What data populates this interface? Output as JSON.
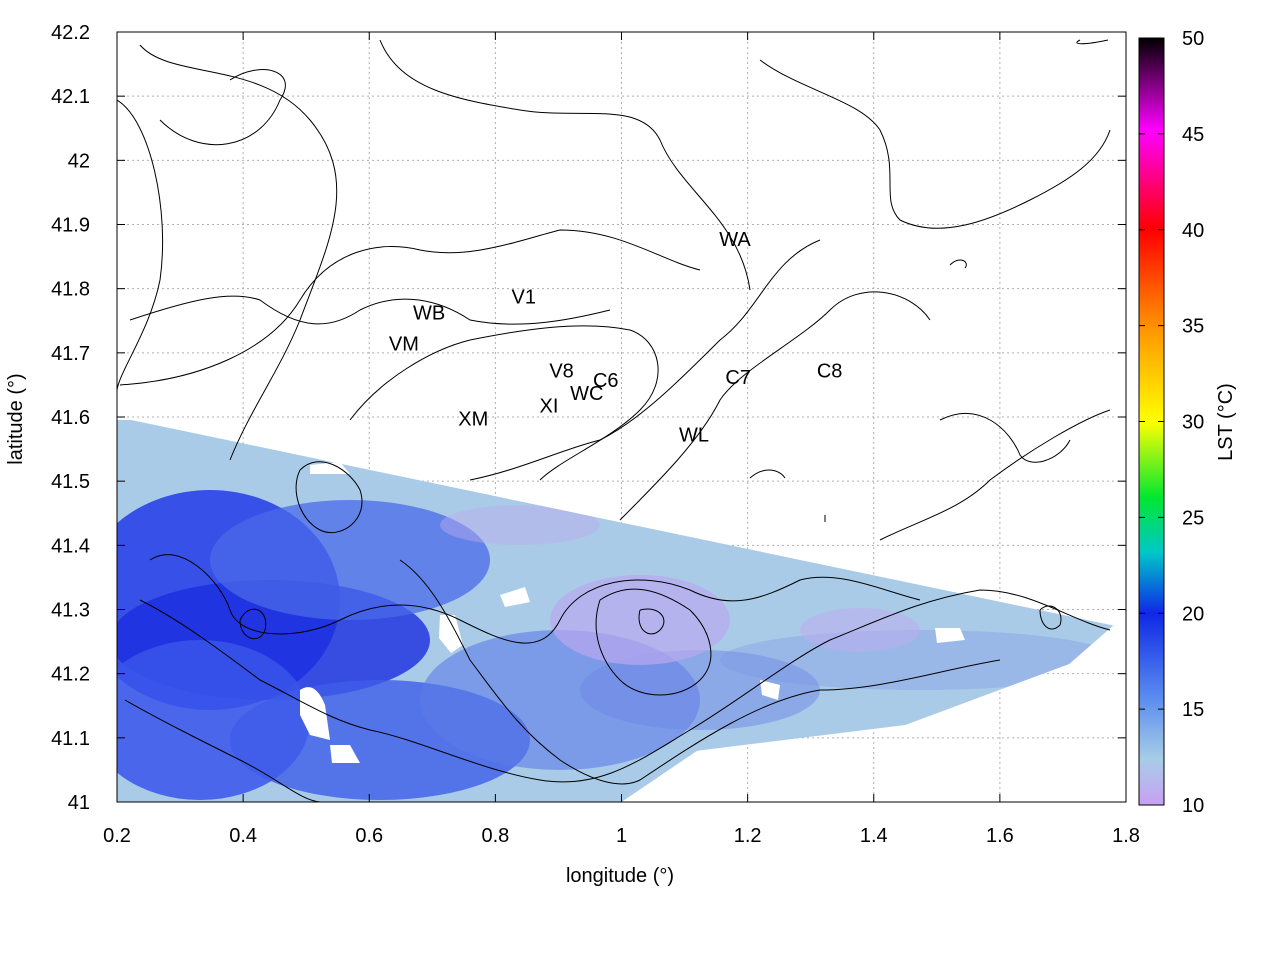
{
  "chart_data": {
    "type": "heatmap",
    "xlabel": "longitude (°)",
    "ylabel": "latitude (°)",
    "colorbar_label": "LST (°C)",
    "xlim": [
      0.2,
      1.8
    ],
    "ylim": [
      41.0,
      42.2
    ],
    "colorbar_range": [
      10,
      50
    ],
    "x_ticks": [
      "0.2",
      "0.4",
      "0.6",
      "0.8",
      "1",
      "1.2",
      "1.4",
      "1.6",
      "1.8"
    ],
    "y_ticks": [
      "41",
      "41.1",
      "41.2",
      "41.3",
      "41.4",
      "41.5",
      "41.6",
      "41.7",
      "41.8",
      "41.9",
      "42",
      "42.1",
      "42.2"
    ],
    "colorbar_ticks": [
      "10",
      "15",
      "20",
      "25",
      "30",
      "35",
      "40",
      "45",
      "50"
    ],
    "grid": true,
    "stations": [
      {
        "label": "WA",
        "lon": 1.18,
        "lat": 41.875
      },
      {
        "label": "V1",
        "lon": 0.845,
        "lat": 41.785
      },
      {
        "label": "WB",
        "lon": 0.695,
        "lat": 41.76
      },
      {
        "label": "VM",
        "lon": 0.655,
        "lat": 41.712
      },
      {
        "label": "V8",
        "lon": 0.905,
        "lat": 41.67
      },
      {
        "label": "C6",
        "lon": 0.975,
        "lat": 41.655
      },
      {
        "label": "WC",
        "lon": 0.945,
        "lat": 41.635
      },
      {
        "label": "C7",
        "lon": 1.185,
        "lat": 41.66
      },
      {
        "label": "C8",
        "lon": 1.33,
        "lat": 41.67
      },
      {
        "label": "XI",
        "lon": 0.885,
        "lat": 41.615
      },
      {
        "label": "XM",
        "lon": 0.765,
        "lat": 41.595
      },
      {
        "label": "WL",
        "lon": 1.115,
        "lat": 41.57
      }
    ],
    "swath": {
      "polygon": [
        [
          0.2,
          41.6
        ],
        [
          1.78,
          41.275
        ],
        [
          1.71,
          41.215
        ],
        [
          1.45,
          41.12
        ],
        [
          1.12,
          41.08
        ],
        [
          1.0,
          41.0
        ],
        [
          0.2,
          41.0
        ]
      ],
      "temperature_range_C": [
        12,
        21
      ],
      "cold_spot": {
        "lon": 1.05,
        "lat": 41.28,
        "value_C": 12
      },
      "warm_zone": {
        "lon": 0.35,
        "lat": 41.3,
        "value_C": 20
      }
    },
    "colormap": [
      "#c8a0f5",
      "#a7cde6",
      "#5a8cf0",
      "#0f28e6",
      "#00c8c8",
      "#00e632",
      "#ffff00",
      "#ff9600",
      "#ff0000",
      "#ff00ff",
      "#000000"
    ]
  }
}
